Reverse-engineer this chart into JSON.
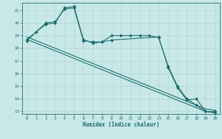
{
  "xlabel": "Humidex (Indice chaleur)",
  "bg_color": "#c8e8e8",
  "grid_color": "#b0d4d4",
  "line_color": "#1a6b6b",
  "xlim": [
    -0.5,
    20.5
  ],
  "ylim": [
    12.8,
    21.6
  ],
  "yticks": [
    13,
    14,
    15,
    16,
    17,
    18,
    19,
    20,
    21
  ],
  "xticks": [
    0,
    1,
    2,
    3,
    4,
    5,
    6,
    7,
    8,
    9,
    10,
    11,
    12,
    13,
    14,
    15,
    16,
    17,
    18,
    19,
    20
  ],
  "series": [
    {
      "x": [
        0,
        1,
        2,
        3,
        4,
        5,
        6,
        7,
        8,
        9,
        10,
        11,
        12,
        13,
        14,
        15,
        16,
        17,
        18,
        19,
        20
      ],
      "y": [
        18.7,
        18.4,
        18.1,
        17.8,
        17.5,
        17.2,
        16.9,
        16.6,
        16.3,
        16.0,
        15.7,
        15.4,
        15.1,
        14.8,
        14.5,
        14.2,
        13.9,
        13.6,
        13.3,
        13.0,
        12.9
      ],
      "marker": null,
      "markersize": 0
    },
    {
      "x": [
        0,
        1,
        2,
        3,
        4,
        5,
        6,
        7,
        8,
        9,
        10,
        11,
        12,
        13,
        14,
        15,
        16,
        17,
        18,
        19,
        20
      ],
      "y": [
        18.9,
        18.6,
        18.3,
        18.0,
        17.7,
        17.4,
        17.1,
        16.8,
        16.5,
        16.2,
        15.9,
        15.6,
        15.3,
        15.0,
        14.7,
        14.4,
        14.1,
        13.8,
        13.5,
        13.2,
        13.1
      ],
      "marker": null,
      "markersize": 0
    },
    {
      "x": [
        0,
        1,
        2,
        3,
        4,
        5,
        6,
        7,
        8,
        9,
        10,
        11,
        12,
        13,
        14,
        15,
        16,
        17,
        18,
        19,
        20
      ],
      "y": [
        18.6,
        19.3,
        20.0,
        20.1,
        21.1,
        21.2,
        18.6,
        18.5,
        18.5,
        19.0,
        19.0,
        19.0,
        19.0,
        19.0,
        18.85,
        16.6,
        15.0,
        14.0,
        13.5,
        13.0,
        13.0
      ],
      "marker": "D",
      "markersize": 2.0
    },
    {
      "x": [
        0,
        2,
        3,
        4,
        5,
        6,
        7,
        8,
        9,
        14,
        15,
        16,
        17,
        18,
        19,
        20
      ],
      "y": [
        18.7,
        19.9,
        20.0,
        21.2,
        21.3,
        18.7,
        18.4,
        18.5,
        18.65,
        18.9,
        16.5,
        14.9,
        13.9,
        14.0,
        13.0,
        12.9
      ],
      "marker": "D",
      "markersize": 2.0
    }
  ]
}
